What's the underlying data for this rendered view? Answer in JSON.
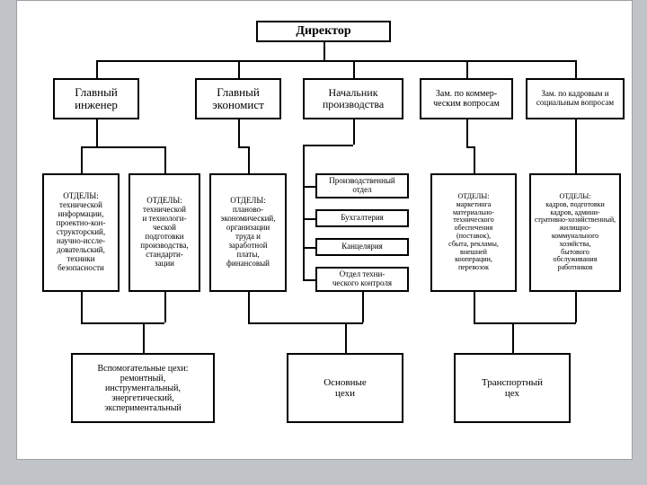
{
  "chart": {
    "type": "tree",
    "background_color": "#ffffff",
    "page_background": "#c0c4c8",
    "border_color": "#000000",
    "font_family": "Times New Roman",
    "director": {
      "label": "Директор",
      "fontsize": 14,
      "weight": "bold"
    },
    "level2": {
      "engineer": {
        "label": "Главный\nинженер",
        "fontsize": 13
      },
      "economist": {
        "label": "Главный\nэкономист",
        "fontsize": 13
      },
      "production": {
        "label": "Начальник\nпроизводства",
        "fontsize": 13
      },
      "commercial": {
        "label": "Зам. по коммер-\nческим вопросам",
        "fontsize": 10
      },
      "hr": {
        "label": "Зам. по кадровым и\nсоциальным вопросам",
        "fontsize": 9
      }
    },
    "level3": {
      "eng_dept1": {
        "label": "ОТДЕЛЫ:\nтехнической\nинформации,\nпроектно-кон-\nструкторский,\nнаучно-иссле-\nдовательский,\nтехники\nбезопасности",
        "fontsize": 9
      },
      "eng_dept2": {
        "label": "ОТДЕЛЫ:\nтехнической\nи технологи-\nческой\nподготовки\nпроизводства,\nстандарти-\nзации",
        "fontsize": 9
      },
      "econ_dept": {
        "label": "ОТДЕЛЫ:\nпланово-\nэкономический,\nорганизации\nтруда и\nзаработной\nплаты,\nфинансовый",
        "fontsize": 9
      },
      "prod_sub1": {
        "label": "Производственный\nотдел",
        "fontsize": 9
      },
      "prod_sub2": {
        "label": "Бухгалтерия",
        "fontsize": 9
      },
      "prod_sub3": {
        "label": "Канцелярия",
        "fontsize": 9
      },
      "prod_sub4": {
        "label": "Отдел техни-\nческого контроля",
        "fontsize": 9
      },
      "comm_dept": {
        "label": "ОТДЕЛЫ:\nмаркетинга\nматериально-\nтехнического\nобеспечения\n(поставок),\nсбыта, рекламы,\nвнешней\nкооперации,\nперевозок",
        "fontsize": 8
      },
      "hr_dept": {
        "label": "ОТДЕЛЫ:\nкадров, подготовки\nкадров, админи-\nстративно-хозяйственный,\nжилищно-\nкоммунального\nхозяйства,\nбытового\nобслуживания\nработников",
        "fontsize": 8
      }
    },
    "level4": {
      "aux": {
        "label": "Вспомогательные цехи:\nремонтный,\nинструментальный,\nэнергетический,\nэкспериментальный",
        "fontsize": 10
      },
      "main": {
        "label": "Основные\nцехи",
        "fontsize": 11
      },
      "trans": {
        "label": "Транспортный\nцех",
        "fontsize": 11
      }
    }
  }
}
